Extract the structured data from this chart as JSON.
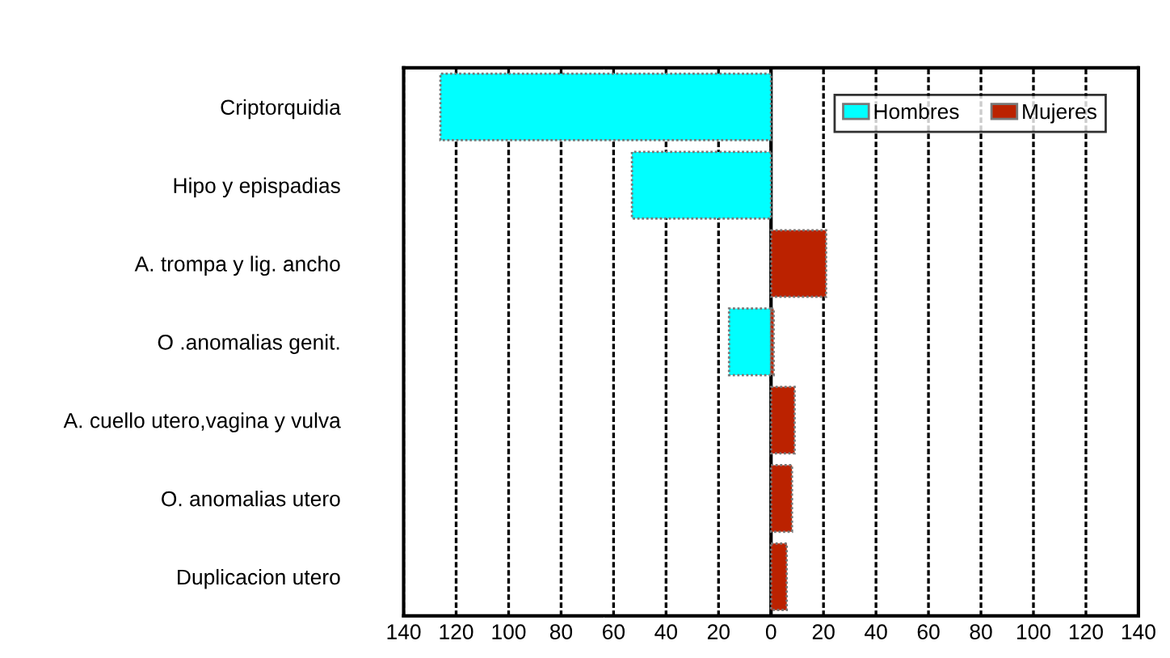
{
  "chart_data": {
    "type": "bar",
    "orientation": "horizontal",
    "categories": [
      "Criptorquidia",
      "Hipo y epispadias",
      "A. trompa y lig. ancho",
      "O .anomalias genit.",
      "A. cuello utero,vagina y vulva",
      "O. anomalias utero",
      "Duplicacion utero"
    ],
    "series": [
      {
        "name": "Hombres",
        "color": "#00ffff",
        "values": [
          -126,
          -53,
          null,
          -16,
          null,
          null,
          null
        ]
      },
      {
        "name": "Mujeres",
        "color": "#bb2200",
        "values": [
          null,
          null,
          21,
          1,
          9,
          8,
          6
        ]
      }
    ],
    "xlim": [
      -140,
      140
    ],
    "xticks": [
      {
        "value": -140,
        "label": "140"
      },
      {
        "value": -120,
        "label": "120"
      },
      {
        "value": -100,
        "label": "100"
      },
      {
        "value": -80,
        "label": "80"
      },
      {
        "value": -60,
        "label": "60"
      },
      {
        "value": -40,
        "label": "40"
      },
      {
        "value": -20,
        "label": "20"
      },
      0,
      20,
      40,
      60,
      80,
      100,
      120,
      140
    ],
    "grid": "x",
    "legend": "top right"
  }
}
